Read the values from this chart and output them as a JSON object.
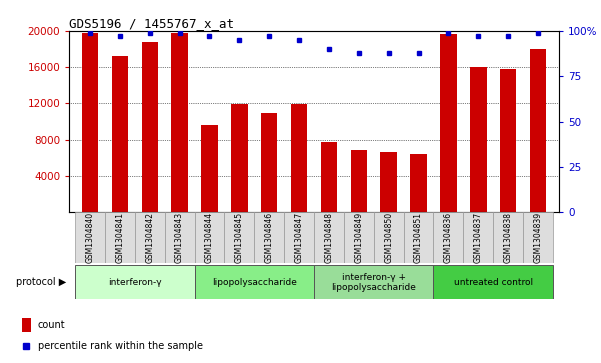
{
  "title": "GDS5196 / 1455767_x_at",
  "samples": [
    "GSM1304840",
    "GSM1304841",
    "GSM1304842",
    "GSM1304843",
    "GSM1304844",
    "GSM1304845",
    "GSM1304846",
    "GSM1304847",
    "GSM1304848",
    "GSM1304849",
    "GSM1304850",
    "GSM1304851",
    "GSM1304836",
    "GSM1304837",
    "GSM1304838",
    "GSM1304839"
  ],
  "counts": [
    19800,
    17200,
    18800,
    19800,
    9600,
    11900,
    10900,
    11900,
    7800,
    6900,
    6600,
    6400,
    19600,
    16000,
    15800,
    18000
  ],
  "percentile": [
    99,
    97,
    99,
    99,
    97,
    95,
    97,
    95,
    90,
    88,
    88,
    88,
    99,
    97,
    97,
    99
  ],
  "bar_color": "#cc0000",
  "dot_color": "#0000cc",
  "ylim_left": [
    0,
    20000
  ],
  "ylim_right": [
    0,
    100
  ],
  "yticks_left": [
    4000,
    8000,
    12000,
    16000,
    20000
  ],
  "yticks_right": [
    0,
    25,
    50,
    75,
    100
  ],
  "groups": [
    {
      "label": "interferon-γ",
      "start": 0,
      "end": 4,
      "color": "#ccffcc"
    },
    {
      "label": "lipopolysaccharide",
      "start": 4,
      "end": 8,
      "color": "#88ee88"
    },
    {
      "label": "interferon-γ +\nlipopolysaccharide",
      "start": 8,
      "end": 12,
      "color": "#99dd99"
    },
    {
      "label": "untreated control",
      "start": 12,
      "end": 16,
      "color": "#44cc44"
    }
  ],
  "protocol_label": "protocol",
  "legend_count": "count",
  "legend_percentile": "percentile rank within the sample",
  "tick_color_left": "#cc0000",
  "tick_color_right": "#0000cc",
  "bg_color": "#ffffff",
  "grid_color": "#000000",
  "bar_width": 0.55,
  "sample_box_color": "#dddddd",
  "sample_box_edge": "#999999"
}
